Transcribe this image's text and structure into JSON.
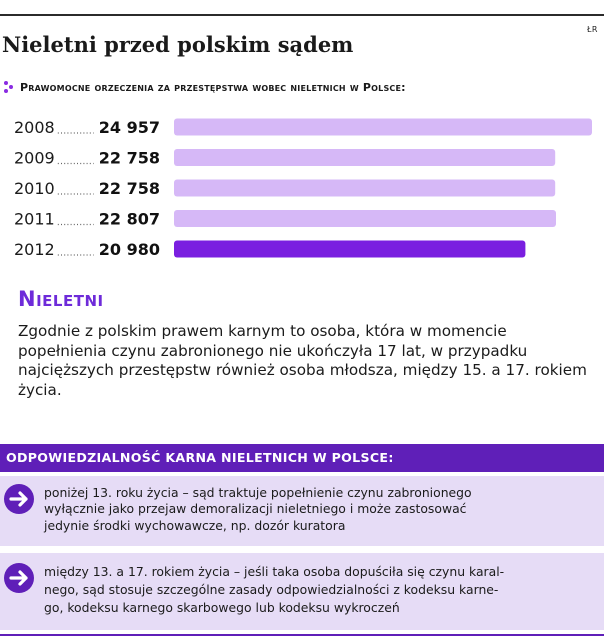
{
  "source_tag": "ŁR",
  "title": "Nieletni przed polskim sądem",
  "subhead": "Prawomocne orzeczenia za przestępstwa wobec nieletnich w Polsce:",
  "chart_data": {
    "type": "bar",
    "orientation": "horizontal",
    "title": "Prawomocne orzeczenia za przestępstwa wobec nieletnich w Polsce:",
    "categories": [
      "2008",
      "2009",
      "2010",
      "2011",
      "2012"
    ],
    "values": [
      24957,
      22758,
      22758,
      22807,
      20980
    ],
    "value_labels": [
      "24 957",
      "22 758",
      "22 758",
      "22 807",
      "20 980"
    ],
    "highlight_index": 4,
    "xlim": [
      0,
      24957
    ],
    "grid": false,
    "legend": "none",
    "colors": {
      "bar": "#d6b8f7",
      "bar_highlight": "#7a1fe0",
      "leader_dots": "#666666"
    }
  },
  "definition": {
    "heading": "Nieletni",
    "body": "Zgodnie z polskim prawem karnym to osoba, która w momencie popełnienia czynu zabronionego nie ukończyła 17 lat, w przypadku najcięższych przestępstw również osoba młodsza, między 15. a 17. rokiem życia."
  },
  "liability": {
    "banner": "ODPOWIEDZIALNOŚĆ KARNA NIELETNICH W POLSCE:",
    "items": [
      {
        "icon": "arrow-right-icon",
        "text": "poniżej 13. roku życia – sąd traktuje popełnienie czynu zabronionego\nwyłącznie jako przejaw demoralizacji nieletniego i może zastosować\njedynie środki wychowawcze, np. dozór kuratora"
      },
      {
        "icon": "arrow-right-icon",
        "text": "między 13. a 17. rokiem życia – jeśli taka osoba dopuściła się czynu karal-\nnego, sąd stosuje szczególne zasady odpowiedzialności z kodeksu karne-\ngo, kodeksu karnego skarbowego lub kodeksu wykroczeń"
      }
    ]
  },
  "colors": {
    "accent": "#5f1fb8",
    "heading_accent": "#6e2bd9",
    "box_background": "#e6dcf6"
  }
}
